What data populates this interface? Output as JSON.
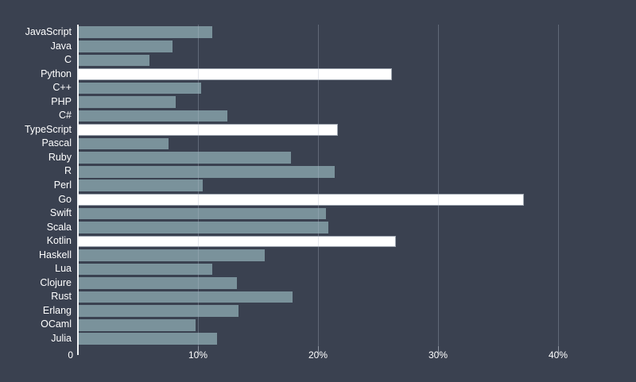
{
  "chart_data": {
    "type": "bar",
    "orientation": "horizontal",
    "title": "",
    "xlabel": "",
    "ylabel": "",
    "legend": false,
    "grid": true,
    "xlim": [
      0,
      44
    ],
    "x_ticks": [
      {
        "label": "0",
        "value": 0
      },
      {
        "label": "10%",
        "value": 10
      },
      {
        "label": "20%",
        "value": 20
      },
      {
        "label": "30%",
        "value": 30
      },
      {
        "label": "40%",
        "value": 40
      }
    ],
    "categories": [
      "JavaScript",
      "Java",
      "C",
      "Python",
      "C++",
      "PHP",
      "C#",
      "TypeScript",
      "Pascal",
      "Ruby",
      "R",
      "Perl",
      "Go",
      "Swift",
      "Scala",
      "Kotlin",
      "Haskell",
      "Lua",
      "Clojure",
      "Rust",
      "Erlang",
      "OCaml",
      "Julia"
    ],
    "values": [
      11.2,
      7.9,
      6.0,
      26.2,
      10.3,
      8.2,
      12.5,
      21.7,
      7.6,
      17.8,
      21.4,
      10.4,
      37.2,
      20.7,
      20.9,
      26.5,
      15.6,
      11.2,
      13.3,
      17.9,
      13.4,
      9.8,
      11.6
    ],
    "highlighted_categories": [
      "Python",
      "TypeScript",
      "Go",
      "Kotlin"
    ]
  },
  "colors": {
    "background": "#3a4150",
    "bar": "#7a929b",
    "bar_highlight": "#ffffff",
    "axis_line": "#f2f4f6",
    "label_text": "#ffffff"
  }
}
